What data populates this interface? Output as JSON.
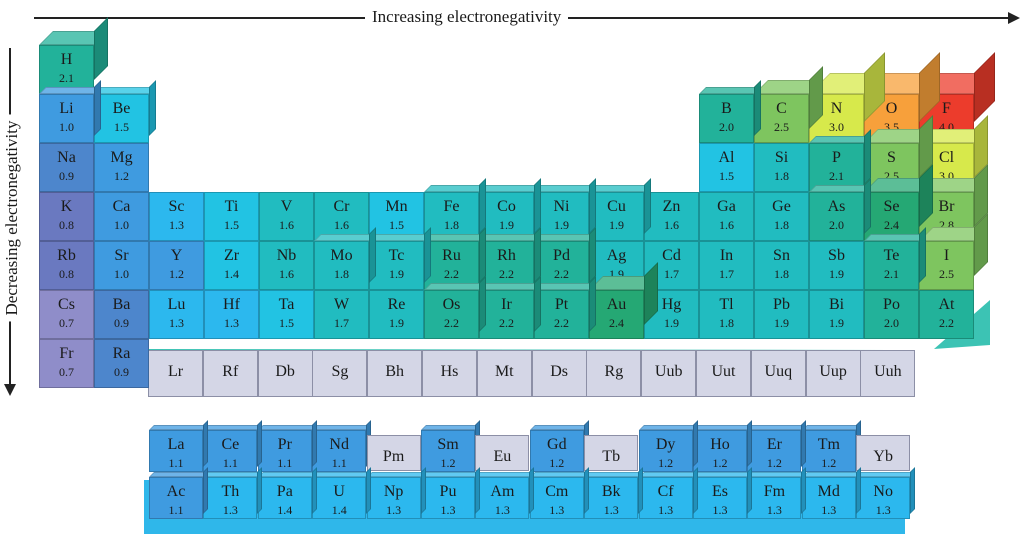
{
  "axis": {
    "top_label": "Increasing electronegativity",
    "left_label": "Decreasing electronegativity"
  },
  "colors": {
    "lavender": "#8f8dc9",
    "indigo": "#6a79c0",
    "royal": "#4d86cc",
    "blue": "#3f9be0",
    "sky": "#2cb8ee",
    "cyan": "#22c3e3",
    "teal": "#21bcc0",
    "seagreen": "#22b29a",
    "green": "#25a874",
    "leaf": "#7ec55f",
    "lime": "#d7e94b",
    "orange": "#f7a03b",
    "red": "#ec3c2c",
    "gray": "#d4d6e6"
  },
  "main_table": [
    {
      "symbol": "H",
      "en": "2.1",
      "color": "seagreen",
      "col": 0,
      "row": 0,
      "h": 2
    },
    {
      "symbol": "Li",
      "en": "1.0",
      "color": "blue",
      "col": 0,
      "row": 1,
      "h": 1
    },
    {
      "symbol": "Be",
      "en": "1.5",
      "color": "cyan",
      "col": 1,
      "row": 1,
      "h": 1
    },
    {
      "symbol": "Na",
      "en": "0.9",
      "color": "royal",
      "col": 0,
      "row": 2,
      "h": 0
    },
    {
      "symbol": "Mg",
      "en": "1.2",
      "color": "blue",
      "col": 1,
      "row": 2,
      "h": 0
    },
    {
      "symbol": "K",
      "en": "0.8",
      "color": "indigo",
      "col": 0,
      "row": 3,
      "h": 0
    },
    {
      "symbol": "Ca",
      "en": "1.0",
      "color": "blue",
      "col": 1,
      "row": 3,
      "h": 0
    },
    {
      "symbol": "Sc",
      "en": "1.3",
      "color": "sky",
      "col": 2,
      "row": 3,
      "h": 0
    },
    {
      "symbol": "Ti",
      "en": "1.5",
      "color": "cyan",
      "col": 3,
      "row": 3,
      "h": 0
    },
    {
      "symbol": "V",
      "en": "1.6",
      "color": "teal",
      "col": 4,
      "row": 3,
      "h": 0
    },
    {
      "symbol": "Cr",
      "en": "1.6",
      "color": "teal",
      "col": 5,
      "row": 3,
      "h": 0
    },
    {
      "symbol": "Mn",
      "en": "1.5",
      "color": "cyan",
      "col": 6,
      "row": 3,
      "h": 0
    },
    {
      "symbol": "Fe",
      "en": "1.8",
      "color": "teal",
      "col": 7,
      "row": 3,
      "h": 1
    },
    {
      "symbol": "Co",
      "en": "1.9",
      "color": "teal",
      "col": 8,
      "row": 3,
      "h": 1
    },
    {
      "symbol": "Ni",
      "en": "1.9",
      "color": "teal",
      "col": 9,
      "row": 3,
      "h": 1
    },
    {
      "symbol": "Cu",
      "en": "1.9",
      "color": "teal",
      "col": 10,
      "row": 3,
      "h": 1
    },
    {
      "symbol": "Zn",
      "en": "1.6",
      "color": "teal",
      "col": 11,
      "row": 3,
      "h": 0
    },
    {
      "symbol": "Ga",
      "en": "1.6",
      "color": "teal",
      "col": 12,
      "row": 3,
      "h": 0
    },
    {
      "symbol": "Ge",
      "en": "1.8",
      "color": "teal",
      "col": 13,
      "row": 3,
      "h": 0
    },
    {
      "symbol": "As",
      "en": "2.0",
      "color": "seagreen",
      "col": 14,
      "row": 3,
      "h": 1
    },
    {
      "symbol": "Se",
      "en": "2.4",
      "color": "green",
      "col": 15,
      "row": 3,
      "h": 2
    },
    {
      "symbol": "Br",
      "en": "2.8",
      "color": "leaf",
      "col": 16,
      "row": 3,
      "h": 2
    },
    {
      "symbol": "Rb",
      "en": "0.8",
      "color": "indigo",
      "col": 0,
      "row": 4,
      "h": 0
    },
    {
      "symbol": "Sr",
      "en": "1.0",
      "color": "blue",
      "col": 1,
      "row": 4,
      "h": 0
    },
    {
      "symbol": "Y",
      "en": "1.2",
      "color": "blue",
      "col": 2,
      "row": 4,
      "h": 0
    },
    {
      "symbol": "Zr",
      "en": "1.4",
      "color": "cyan",
      "col": 3,
      "row": 4,
      "h": 0
    },
    {
      "symbol": "Nb",
      "en": "1.6",
      "color": "teal",
      "col": 4,
      "row": 4,
      "h": 0
    },
    {
      "symbol": "Mo",
      "en": "1.8",
      "color": "teal",
      "col": 5,
      "row": 4,
      "h": 1
    },
    {
      "symbol": "Tc",
      "en": "1.9",
      "color": "teal",
      "col": 6,
      "row": 4,
      "h": 1
    },
    {
      "symbol": "Ru",
      "en": "2.2",
      "color": "seagreen",
      "col": 7,
      "row": 4,
      "h": 1
    },
    {
      "symbol": "Rh",
      "en": "2.2",
      "color": "seagreen",
      "col": 8,
      "row": 4,
      "h": 1
    },
    {
      "symbol": "Pd",
      "en": "2.2",
      "color": "seagreen",
      "col": 9,
      "row": 4,
      "h": 1
    },
    {
      "symbol": "Ag",
      "en": "1.9",
      "color": "teal",
      "col": 10,
      "row": 4,
      "h": 0
    },
    {
      "symbol": "Cd",
      "en": "1.7",
      "color": "teal",
      "col": 11,
      "row": 4,
      "h": 0
    },
    {
      "symbol": "In",
      "en": "1.7",
      "color": "teal",
      "col": 12,
      "row": 4,
      "h": 0
    },
    {
      "symbol": "Sn",
      "en": "1.8",
      "color": "teal",
      "col": 13,
      "row": 4,
      "h": 0
    },
    {
      "symbol": "Sb",
      "en": "1.9",
      "color": "teal",
      "col": 14,
      "row": 4,
      "h": 0
    },
    {
      "symbol": "Te",
      "en": "2.1",
      "color": "seagreen",
      "col": 15,
      "row": 4,
      "h": 1
    },
    {
      "symbol": "I",
      "en": "2.5",
      "color": "leaf",
      "col": 16,
      "row": 4,
      "h": 2
    },
    {
      "symbol": "Cs",
      "en": "0.7",
      "color": "lavender",
      "col": 0,
      "row": 5,
      "h": 0
    },
    {
      "symbol": "Ba",
      "en": "0.9",
      "color": "royal",
      "col": 1,
      "row": 5,
      "h": 0
    },
    {
      "symbol": "Lu",
      "en": "1.3",
      "color": "sky",
      "col": 2,
      "row": 5,
      "h": 0
    },
    {
      "symbol": "Hf",
      "en": "1.3",
      "color": "sky",
      "col": 3,
      "row": 5,
      "h": 0
    },
    {
      "symbol": "Ta",
      "en": "1.5",
      "color": "cyan",
      "col": 4,
      "row": 5,
      "h": 0
    },
    {
      "symbol": "W",
      "en": "1.7",
      "color": "teal",
      "col": 5,
      "row": 5,
      "h": 0
    },
    {
      "symbol": "Re",
      "en": "1.9",
      "color": "teal",
      "col": 6,
      "row": 5,
      "h": 0
    },
    {
      "symbol": "Os",
      "en": "2.2",
      "color": "seagreen",
      "col": 7,
      "row": 5,
      "h": 1
    },
    {
      "symbol": "Ir",
      "en": "2.2",
      "color": "seagreen",
      "col": 8,
      "row": 5,
      "h": 1
    },
    {
      "symbol": "Pt",
      "en": "2.2",
      "color": "seagreen",
      "col": 9,
      "row": 5,
      "h": 1
    },
    {
      "symbol": "Au",
      "en": "2.4",
      "color": "green",
      "col": 10,
      "row": 5,
      "h": 2
    },
    {
      "symbol": "Hg",
      "en": "1.9",
      "color": "teal",
      "col": 11,
      "row": 5,
      "h": 0
    },
    {
      "symbol": "Tl",
      "en": "1.8",
      "color": "teal",
      "col": 12,
      "row": 5,
      "h": 0
    },
    {
      "symbol": "Pb",
      "en": "1.9",
      "color": "teal",
      "col": 13,
      "row": 5,
      "h": 0
    },
    {
      "symbol": "Bi",
      "en": "1.9",
      "color": "teal",
      "col": 14,
      "row": 5,
      "h": 0
    },
    {
      "symbol": "Po",
      "en": "2.0",
      "color": "seagreen",
      "col": 15,
      "row": 5,
      "h": 0
    },
    {
      "symbol": "At",
      "en": "2.2",
      "color": "seagreen",
      "col": 16,
      "row": 5,
      "h": 0
    },
    {
      "symbol": "Fr",
      "en": "0.7",
      "color": "lavender",
      "col": 0,
      "row": 6,
      "h": 0
    },
    {
      "symbol": "Ra",
      "en": "0.9",
      "color": "royal",
      "col": 1,
      "row": 6,
      "h": 0
    },
    {
      "symbol": "B",
      "en": "2.0",
      "color": "seagreen",
      "col": 12,
      "row": 1,
      "h": 1
    },
    {
      "symbol": "C",
      "en": "2.5",
      "color": "leaf",
      "col": 13,
      "row": 1,
      "h": 2
    },
    {
      "symbol": "N",
      "en": "3.0",
      "color": "lime",
      "col": 14,
      "row": 1,
      "h": 3
    },
    {
      "symbol": "O",
      "en": "3.5",
      "color": "orange",
      "col": 15,
      "row": 1,
      "h": 3
    },
    {
      "symbol": "F",
      "en": "4.0",
      "color": "red",
      "col": 16,
      "row": 1,
      "h": 3
    },
    {
      "symbol": "Al",
      "en": "1.5",
      "color": "cyan",
      "col": 12,
      "row": 2,
      "h": 0
    },
    {
      "symbol": "Si",
      "en": "1.8",
      "color": "teal",
      "col": 13,
      "row": 2,
      "h": 0
    },
    {
      "symbol": "P",
      "en": "2.1",
      "color": "seagreen",
      "col": 14,
      "row": 2,
      "h": 1
    },
    {
      "symbol": "S",
      "en": "2.5",
      "color": "leaf",
      "col": 15,
      "row": 2,
      "h": 2
    },
    {
      "symbol": "Cl",
      "en": "3.0",
      "color": "lime",
      "col": 16,
      "row": 2,
      "h": 2
    }
  ],
  "flat_row": [
    "Lr",
    "Rf",
    "Db",
    "Sg",
    "Bh",
    "Hs",
    "Mt",
    "Ds",
    "Rg",
    "Uub",
    "Uut",
    "Uuq",
    "Uup",
    "Uuh"
  ],
  "f_block": [
    {
      "symbol": "La",
      "en": "1.1",
      "color": "blue",
      "col": 0,
      "row": 0
    },
    {
      "symbol": "Ce",
      "en": "1.1",
      "color": "blue",
      "col": 1,
      "row": 0
    },
    {
      "symbol": "Pr",
      "en": "1.1",
      "color": "blue",
      "col": 2,
      "row": 0
    },
    {
      "symbol": "Nd",
      "en": "1.1",
      "color": "blue",
      "col": 3,
      "row": 0
    },
    {
      "symbol": "Pm",
      "en": "",
      "color": "gray",
      "col": 4,
      "row": 0
    },
    {
      "symbol": "Sm",
      "en": "1.2",
      "color": "blue",
      "col": 5,
      "row": 0
    },
    {
      "symbol": "Eu",
      "en": "",
      "color": "gray",
      "col": 6,
      "row": 0
    },
    {
      "symbol": "Gd",
      "en": "1.2",
      "color": "blue",
      "col": 7,
      "row": 0
    },
    {
      "symbol": "Tb",
      "en": "",
      "color": "gray",
      "col": 8,
      "row": 0
    },
    {
      "symbol": "Dy",
      "en": "1.2",
      "color": "blue",
      "col": 9,
      "row": 0
    },
    {
      "symbol": "Ho",
      "en": "1.2",
      "color": "blue",
      "col": 10,
      "row": 0
    },
    {
      "symbol": "Er",
      "en": "1.2",
      "color": "blue",
      "col": 11,
      "row": 0
    },
    {
      "symbol": "Tm",
      "en": "1.2",
      "color": "blue",
      "col": 12,
      "row": 0
    },
    {
      "symbol": "Yb",
      "en": "",
      "color": "gray",
      "col": 13,
      "row": 0
    },
    {
      "symbol": "Ac",
      "en": "1.1",
      "color": "blue",
      "col": 0,
      "row": 1
    },
    {
      "symbol": "Th",
      "en": "1.3",
      "color": "sky",
      "col": 1,
      "row": 1
    },
    {
      "symbol": "Pa",
      "en": "1.4",
      "color": "sky",
      "col": 2,
      "row": 1
    },
    {
      "symbol": "U",
      "en": "1.4",
      "color": "sky",
      "col": 3,
      "row": 1
    },
    {
      "symbol": "Np",
      "en": "1.3",
      "color": "sky",
      "col": 4,
      "row": 1
    },
    {
      "symbol": "Pu",
      "en": "1.3",
      "color": "sky",
      "col": 5,
      "row": 1
    },
    {
      "symbol": "Am",
      "en": "1.3",
      "color": "sky",
      "col": 6,
      "row": 1
    },
    {
      "symbol": "Cm",
      "en": "1.3",
      "color": "sky",
      "col": 7,
      "row": 1
    },
    {
      "symbol": "Bk",
      "en": "1.3",
      "color": "sky",
      "col": 8,
      "row": 1
    },
    {
      "symbol": "Cf",
      "en": "1.3",
      "color": "sky",
      "col": 9,
      "row": 1
    },
    {
      "symbol": "Es",
      "en": "1.3",
      "color": "sky",
      "col": 10,
      "row": 1
    },
    {
      "symbol": "Fm",
      "en": "1.3",
      "color": "sky",
      "col": 11,
      "row": 1
    },
    {
      "symbol": "Md",
      "en": "1.3",
      "color": "sky",
      "col": 12,
      "row": 1
    },
    {
      "symbol": "No",
      "en": "1.3",
      "color": "sky",
      "col": 13,
      "row": 1
    }
  ]
}
